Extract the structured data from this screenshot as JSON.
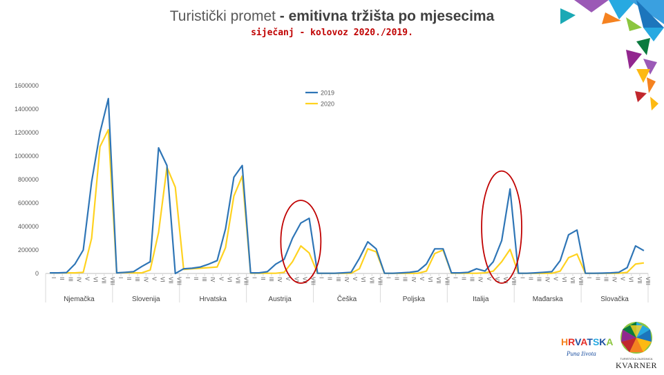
{
  "header": {
    "title_normal": "Turistički promet",
    "title_bold": " - emitivna tržišta po mjesecima",
    "subtitle": "siječanj - kolovoz 2020./2019."
  },
  "logos": {
    "hrvatska_word": "HRVATSKA",
    "hrvatska_motto": "Puna života",
    "kvarner_small": "TURISTIČKA ZAJEDNICA",
    "kvarner_big": "KVARNER"
  },
  "colors": {
    "series_2019": "#2e75b6",
    "series_2020": "#ffd21f",
    "highlight": "#c00000"
  },
  "chart_data": {
    "type": "line",
    "months": [
      "I",
      "II",
      "III",
      "IV",
      "V",
      "VI",
      "VII",
      "VIII"
    ],
    "groups": [
      "Njemačka",
      "Slovenija",
      "Hrvatska",
      "Austrija",
      "Češka",
      "Poljska",
      "Italija",
      "Mađarska",
      "Slovačka"
    ],
    "y_ticks": [
      "0",
      "200000",
      "400000",
      "600000",
      "800000",
      "1000000",
      "1200000",
      "1400000",
      "1600000"
    ],
    "ylim": [
      0,
      1600000
    ],
    "legend_position": "top-center",
    "series": [
      {
        "name": "2019",
        "values": [
          [
            5000,
            5000,
            8000,
            80000,
            200000,
            780000,
            1200000,
            1490000
          ],
          [
            5000,
            10000,
            15000,
            60000,
            100000,
            1070000,
            920000,
            0
          ],
          [
            40000,
            45000,
            55000,
            80000,
            110000,
            380000,
            820000,
            920000
          ],
          [
            5000,
            5000,
            15000,
            80000,
            120000,
            300000,
            430000,
            470000
          ],
          [
            2000,
            2000,
            2000,
            5000,
            10000,
            130000,
            270000,
            210000
          ],
          [
            2000,
            2000,
            5000,
            10000,
            20000,
            80000,
            210000,
            210000
          ],
          [
            5000,
            5000,
            10000,
            40000,
            20000,
            100000,
            280000,
            720000
          ],
          [
            2000,
            2000,
            5000,
            10000,
            15000,
            110000,
            330000,
            370000
          ],
          [
            2000,
            2000,
            3000,
            5000,
            10000,
            50000,
            235000,
            195000
          ]
        ]
      },
      {
        "name": "2020",
        "values": [
          [
            5000,
            5000,
            5000,
            5000,
            10000,
            300000,
            1080000,
            1225000
          ],
          [
            5000,
            8000,
            5000,
            5000,
            30000,
            350000,
            905000,
            735000
          ],
          [
            35000,
            40000,
            45000,
            50000,
            55000,
            220000,
            660000,
            830000
          ],
          [
            2000,
            2000,
            2000,
            2000,
            10000,
            100000,
            235000,
            175000
          ],
          [
            1000,
            1000,
            1000,
            1000,
            2000,
            40000,
            210000,
            185000
          ],
          [
            1000,
            1000,
            1000,
            1000,
            2000,
            20000,
            170000,
            200000
          ],
          [
            2000,
            2000,
            2000,
            2000,
            5000,
            20000,
            100000,
            205000
          ],
          [
            1000,
            1000,
            1000,
            1000,
            2000,
            20000,
            135000,
            165000
          ],
          [
            1000,
            1000,
            1000,
            1000,
            2000,
            10000,
            80000,
            90000
          ]
        ]
      }
    ],
    "highlights": [
      {
        "group": "Austrija"
      },
      {
        "group": "Italija"
      }
    ]
  }
}
